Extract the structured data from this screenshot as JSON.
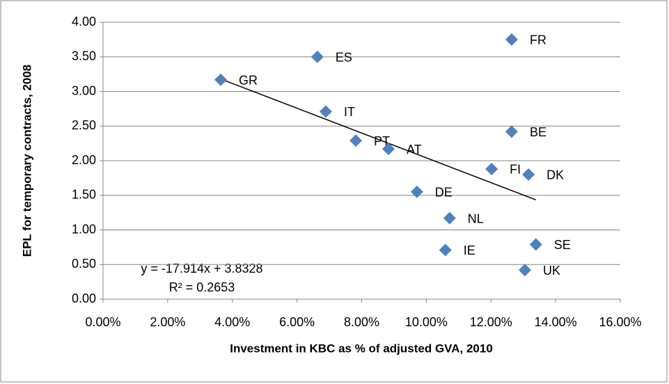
{
  "chart_data": {
    "type": "scatter",
    "xlabel": "Investment in KBC as % of adjusted GVA, 2010",
    "ylabel": "EPL for temporary contracts, 2008",
    "x": [
      0.1264,
      0.0663,
      0.0364,
      0.0689,
      0.0782,
      0.0883,
      0.1264,
      0.1202,
      0.1316,
      0.0971,
      0.1072,
      0.1059,
      0.1339,
      0.1305
    ],
    "values": [
      3.75,
      3.5,
      3.17,
      2.71,
      2.29,
      2.17,
      2.42,
      1.88,
      1.8,
      1.55,
      1.17,
      0.71,
      0.79,
      0.42
    ],
    "labels": [
      "FR",
      "ES",
      "GR",
      "IT",
      "PT",
      "AT",
      "BE",
      "FI",
      "DK",
      "DE",
      "NL",
      "IE",
      "SE",
      "UK"
    ],
    "color": "#4f81bd",
    "xlim": [
      0,
      0.16
    ],
    "xticks": [
      {
        "value": 0,
        "label": "0.00%"
      },
      {
        "value": 0.02,
        "label": "2.00%"
      },
      {
        "value": 0.04,
        "label": "4.00%"
      },
      {
        "value": 0.06,
        "label": "6.00%"
      },
      {
        "value": 0.08,
        "label": "8.00%"
      },
      {
        "value": 0.1,
        "label": "10.00%"
      },
      {
        "value": 0.12,
        "label": "12.00%"
      },
      {
        "value": 0.14,
        "label": "14.00%"
      },
      {
        "value": 0.16,
        "label": "16.00%"
      }
    ],
    "ylim": [
      0,
      4
    ],
    "yticks": [
      {
        "value": 0,
        "label": "0.00"
      },
      {
        "value": 0.5,
        "label": "0.50"
      },
      {
        "value": 1,
        "label": "1.00"
      },
      {
        "value": 1.5,
        "label": "1.50"
      },
      {
        "value": 2,
        "label": "2.00"
      },
      {
        "value": 2.5,
        "label": "2.50"
      },
      {
        "value": 3,
        "label": "3.00"
      },
      {
        "value": 3.5,
        "label": "3.50"
      },
      {
        "value": 4,
        "label": "4.00"
      }
    ],
    "grid": true,
    "trendline": {
      "slope": -17.914,
      "intercept": 3.8328,
      "equation": "y = -17.914x + 3.8328",
      "r2": "R² = 0.2653",
      "color": "#000000"
    }
  }
}
